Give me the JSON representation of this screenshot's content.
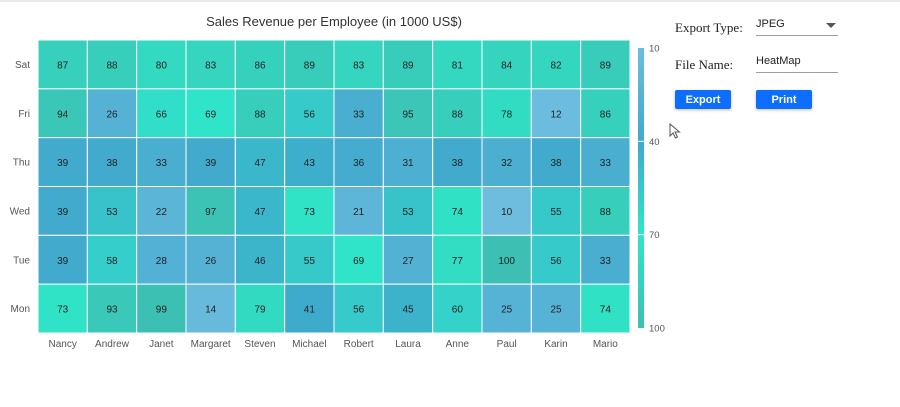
{
  "chart_data": {
    "type": "heatmap",
    "title": "Sales Revenue per Employee (in 1000 US$)",
    "x_categories": [
      "Nancy",
      "Andrew",
      "Janet",
      "Margaret",
      "Steven",
      "Michael",
      "Robert",
      "Laura",
      "Anne",
      "Paul",
      "Karin",
      "Mario"
    ],
    "y_categories": [
      "Sat",
      "Fri",
      "Thu",
      "Wed",
      "Tue",
      "Mon"
    ],
    "values": [
      [
        87,
        88,
        80,
        83,
        86,
        89,
        83,
        89,
        81,
        84,
        82,
        89
      ],
      [
        94,
        26,
        66,
        69,
        88,
        56,
        33,
        95,
        88,
        78,
        12,
        86
      ],
      [
        39,
        38,
        33,
        39,
        47,
        43,
        36,
        31,
        38,
        32,
        38,
        33
      ],
      [
        39,
        53,
        22,
        97,
        47,
        73,
        21,
        53,
        74,
        10,
        55,
        88
      ],
      [
        39,
        58,
        28,
        26,
        46,
        55,
        69,
        27,
        77,
        100,
        56,
        33
      ],
      [
        73,
        93,
        99,
        14,
        79,
        41,
        56,
        45,
        60,
        25,
        25,
        74
      ]
    ],
    "legend": {
      "position": "right",
      "labels": [
        "10",
        "40",
        "70",
        "100"
      ],
      "stops": [
        10,
        40,
        70,
        100
      ],
      "colors": [
        "#6ebddf",
        "#3fa9cc",
        "#2ee6c8",
        "#3dbfb3"
      ]
    }
  },
  "export_panel": {
    "export_type_label": "Export Type:",
    "export_type_value": "JPEG",
    "file_name_label": "File Name:",
    "file_name_value": "HeatMap",
    "export_button": "Export",
    "print_button": "Print",
    "button_color": "#0d6efd"
  }
}
